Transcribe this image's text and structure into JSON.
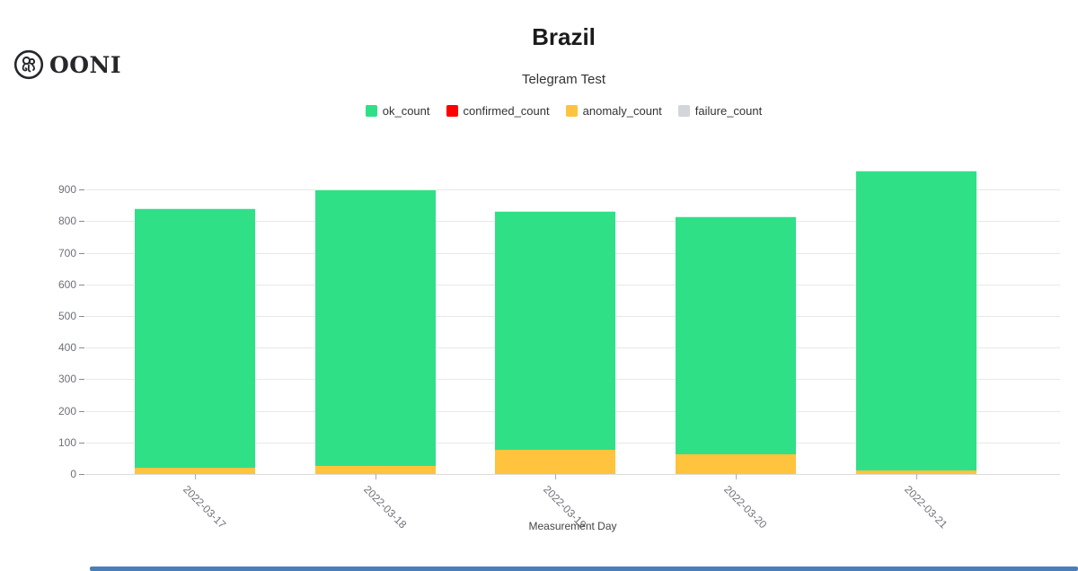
{
  "brand": {
    "name": "OONI"
  },
  "chart_data": {
    "type": "bar",
    "stacked": true,
    "title": "Brazil",
    "subtitle": "Telegram Test",
    "xlabel": "Measurement Day",
    "ylabel": "",
    "categories": [
      "2022-03-17",
      "2022-03-18",
      "2022-03-19",
      "2022-03-20",
      "2022-03-21"
    ],
    "series": [
      {
        "name": "ok_count",
        "color": "#2fe087",
        "values": [
          820,
          875,
          755,
          754,
          950
        ]
      },
      {
        "name": "confirmed_count",
        "color": "#ff0000",
        "values": [
          0,
          0,
          0,
          0,
          0
        ]
      },
      {
        "name": "anomaly_count",
        "color": "#ffc33d",
        "values": [
          20,
          25,
          78,
          62,
          10
        ]
      },
      {
        "name": "failure_count",
        "color": "#d2d6da",
        "values": [
          0,
          0,
          0,
          0,
          0
        ]
      }
    ],
    "stack_bottom_to_top": [
      "anomaly_count",
      "confirmed_count",
      "failure_count",
      "ok_count"
    ],
    "totals": [
      840,
      900,
      833,
      816,
      960
    ],
    "yticks": [
      0,
      100,
      200,
      300,
      400,
      500,
      600,
      700,
      800,
      900
    ],
    "ylim": [
      0,
      975
    ],
    "grid": true,
    "legend_position": "top"
  }
}
